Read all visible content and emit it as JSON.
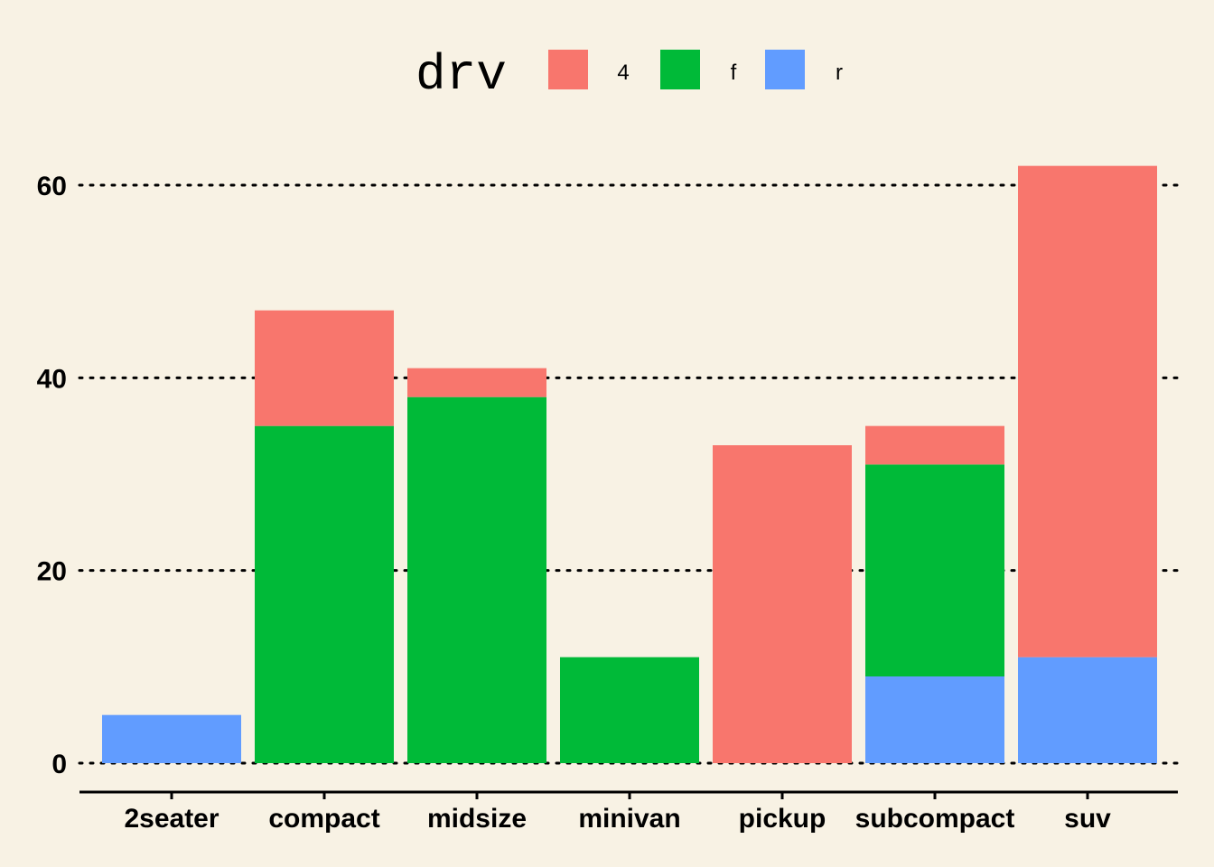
{
  "chart_data": {
    "type": "bar",
    "stacked": true,
    "categories": [
      "2seater",
      "compact",
      "midsize",
      "minivan",
      "pickup",
      "subcompact",
      "suv"
    ],
    "series": [
      {
        "name": "4",
        "color": "#f8766d",
        "values": [
          0,
          12,
          3,
          0,
          33,
          4,
          51
        ]
      },
      {
        "name": "f",
        "color": "#00ba38",
        "values": [
          0,
          35,
          38,
          11,
          0,
          22,
          0
        ]
      },
      {
        "name": "r",
        "color": "#619cff",
        "values": [
          5,
          0,
          0,
          0,
          0,
          9,
          11
        ]
      }
    ],
    "stack_order_bottom_to_top": [
      "r",
      "f",
      "4"
    ],
    "legend": {
      "title": "drv",
      "position": "top",
      "entries": [
        "4",
        "f",
        "r"
      ]
    },
    "y_ticks": [
      0,
      20,
      40,
      60
    ],
    "ylim": [
      -3.1,
      65.1
    ],
    "grid": "horizontal-dotted",
    "background": "#f8f2e4",
    "title": "",
    "xlabel": "",
    "ylabel": ""
  }
}
